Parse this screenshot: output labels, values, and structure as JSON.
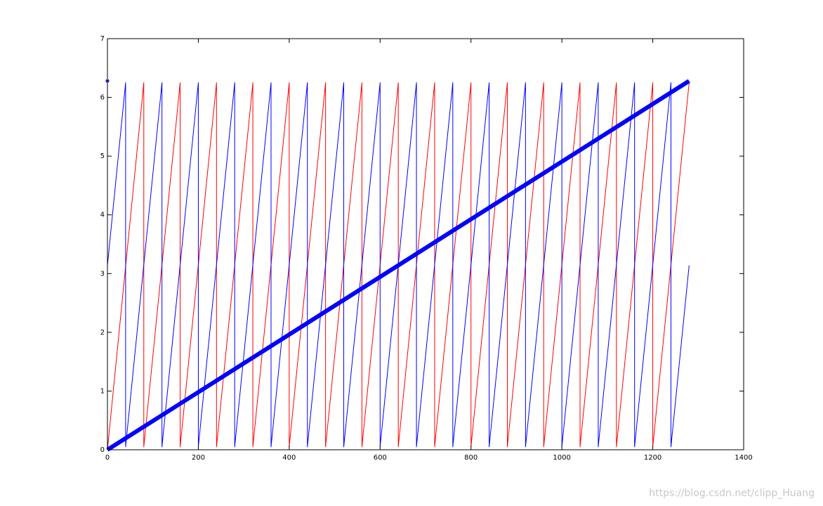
{
  "chart_data": {
    "type": "line",
    "xlim": [
      0,
      1400
    ],
    "xticks": [
      0,
      200,
      400,
      600,
      800,
      1000,
      1200,
      1400
    ],
    "ylim": [
      0,
      7
    ],
    "yticks": [
      0,
      1,
      2,
      3,
      4,
      5,
      6,
      7
    ],
    "series": [
      {
        "color": "#ff0000",
        "line_width": 1,
        "x": [
          0,
          80,
          80,
          160,
          160,
          240,
          240,
          320,
          320,
          400,
          400,
          480,
          480,
          560,
          560,
          640,
          640,
          720,
          720,
          800,
          800,
          880,
          880,
          960,
          960,
          1040,
          1040,
          1120,
          1120,
          1200,
          1200,
          1280
        ],
        "values": [
          0,
          6.25,
          0.05,
          6.25,
          0.05,
          6.25,
          0.05,
          6.25,
          0.05,
          6.25,
          0.05,
          6.25,
          0.05,
          6.25,
          0.05,
          6.25,
          0.05,
          6.25,
          0.05,
          6.25,
          0.05,
          6.25,
          0.05,
          6.25,
          0.05,
          6.25,
          0.05,
          6.25,
          0.05,
          6.25,
          0.05,
          6.25
        ]
      },
      {
        "color": "#0000ff",
        "line_width": 1,
        "x": [
          0,
          40,
          40,
          120,
          120,
          200,
          200,
          280,
          280,
          360,
          360,
          440,
          440,
          520,
          520,
          600,
          600,
          680,
          680,
          760,
          760,
          840,
          840,
          920,
          920,
          1000,
          1000,
          1080,
          1080,
          1160,
          1160,
          1240,
          1240,
          1280
        ],
        "values": [
          3.14,
          6.25,
          0.05,
          6.25,
          0.05,
          6.25,
          0.05,
          6.25,
          0.05,
          6.25,
          0.05,
          6.25,
          0.05,
          6.25,
          0.05,
          6.25,
          0.05,
          6.25,
          0.05,
          6.25,
          0.05,
          6.25,
          0.05,
          6.25,
          0.05,
          6.25,
          0.05,
          6.25,
          0.05,
          6.25,
          0.05,
          6.25,
          0.05,
          3.14
        ]
      },
      {
        "color": "#0000ff",
        "line_width": 6,
        "x": [
          0,
          1280
        ],
        "values": [
          0,
          6.28
        ]
      },
      {
        "color": "#0000ff",
        "marker": "star",
        "x": [
          0
        ],
        "values": [
          6.28
        ]
      }
    ],
    "watermark": "https://blog.csdn.net/clipp_Huang"
  }
}
